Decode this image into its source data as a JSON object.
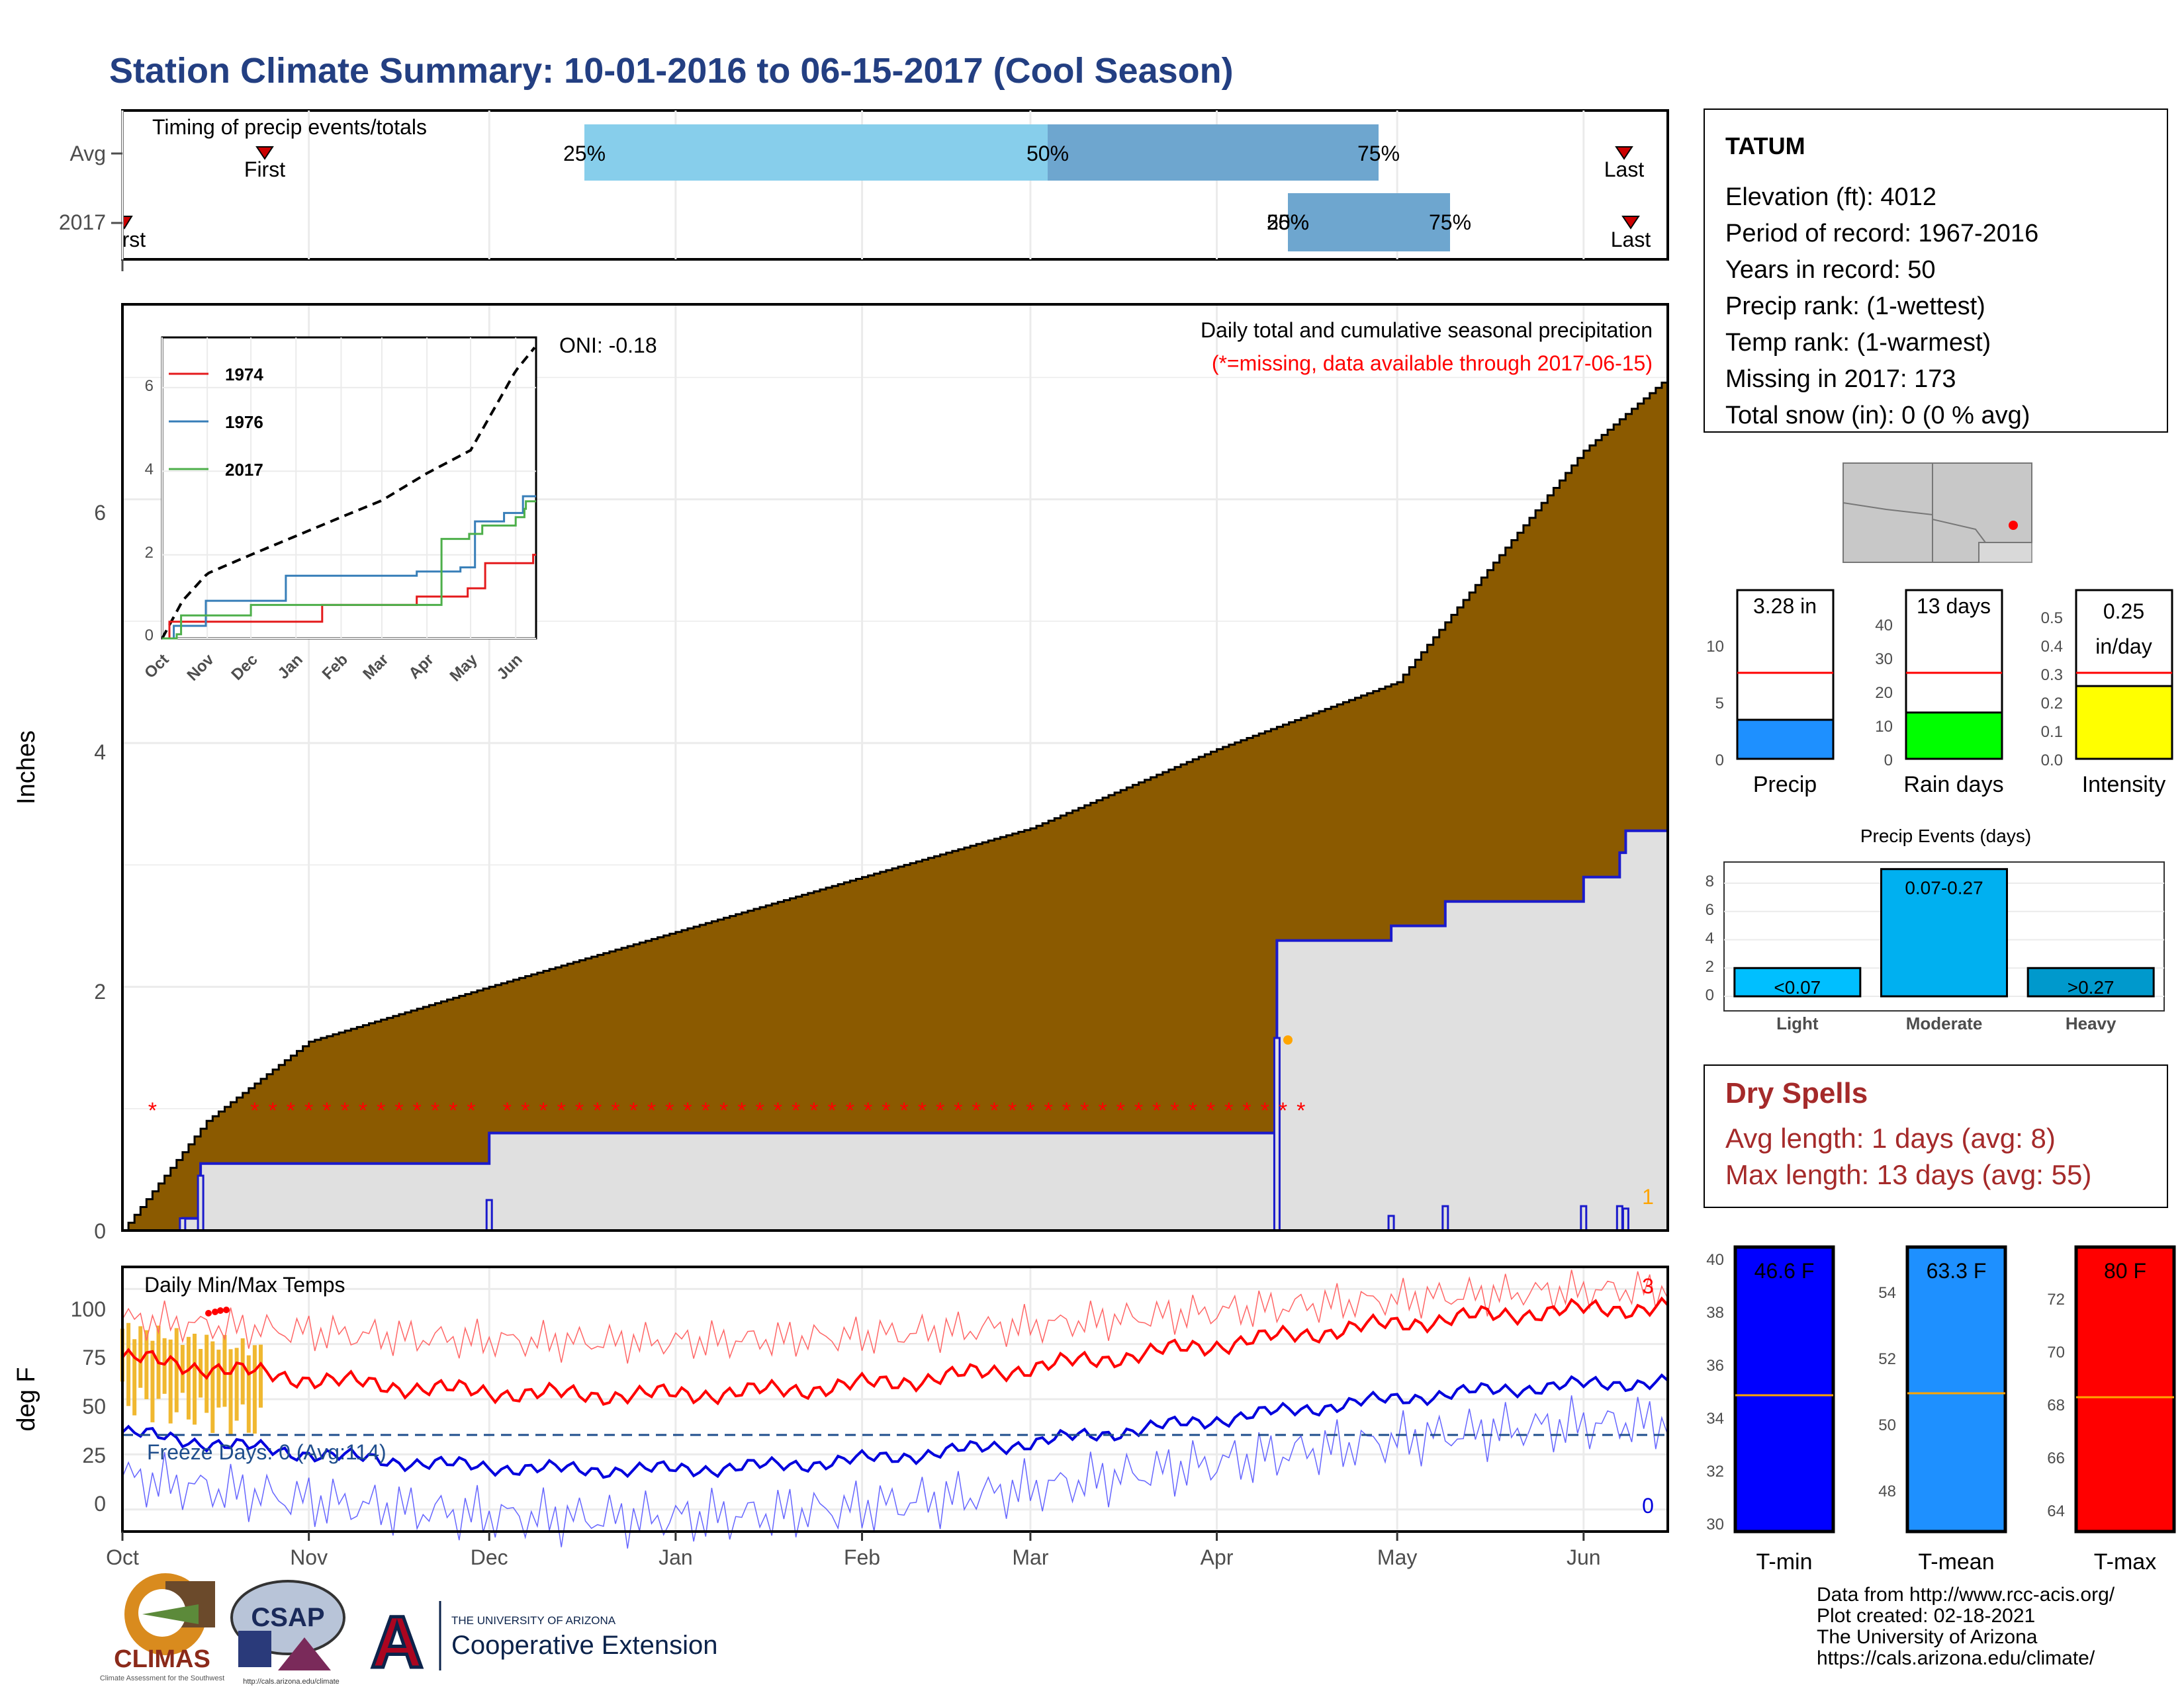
{
  "title": "Station Climate Summary: 10-01-2016 to 06-15-2017 (Cool Season)",
  "timing": {
    "label": "Timing of precip events/totals",
    "rows": [
      "Avg",
      "2017"
    ],
    "avg": {
      "first_label": "First",
      "last_label": "Last",
      "p25": "25%",
      "p50": "50%",
      "p75": "75%"
    },
    "y2017": {
      "first_label": "First",
      "last_label": "Last",
      "p25": "25%",
      "p50": "50%",
      "p75": "75%"
    },
    "colors": {
      "light": "#87ceeb",
      "dark": "#6ea6cf",
      "marker": "#cc0000"
    }
  },
  "precip_panel": {
    "ylabel": "Inches",
    "yticks": [
      "0",
      "2",
      "4",
      "6"
    ],
    "oni": "ONI: -0.18",
    "note1": "Daily total and cumulative seasonal precipitation",
    "note2": "(*=missing, data available through 2017-06-15)",
    "corner_count": "1",
    "colors": {
      "avg_fill": "#8b5a00",
      "obs_fill": "#e0e0e0",
      "obs_line": "#1a1acc",
      "missing": "#ff0000"
    }
  },
  "inset": {
    "yticks": [
      "0",
      "2",
      "4",
      "6"
    ],
    "xticks": [
      "Oct",
      "Nov",
      "Dec",
      "Jan",
      "Feb",
      "Mar",
      "Apr",
      "May",
      "Jun"
    ],
    "legend": [
      {
        "name": "1974",
        "color": "#e41a1c"
      },
      {
        "name": "1976",
        "color": "#377eb8"
      },
      {
        "name": "2017",
        "color": "#4daf4a"
      }
    ]
  },
  "temp_panel": {
    "ylabel": "deg F",
    "yticks": [
      "0",
      "25",
      "50",
      "75",
      "100"
    ],
    "label": "Daily Min/Max Temps",
    "freeze": "Freeze Days: 0 (Avg:114)",
    "count_max": "3",
    "count_min": "0",
    "xticks": [
      "Oct",
      "Nov",
      "Dec",
      "Jan",
      "Feb",
      "Mar",
      "Apr",
      "May",
      "Jun"
    ]
  },
  "station": {
    "name": "TATUM",
    "lines": [
      "Elevation (ft): 4012",
      "Period of record: 1967-2016",
      "Years in record: 50",
      "Precip rank:  (1-wettest)",
      "Temp rank:  (1-warmest)",
      "Missing in 2017: 173",
      "Total snow (in): 0 (0 % avg)"
    ]
  },
  "gauges": [
    {
      "label": "Precip",
      "value": "3.28 in",
      "ticks": [
        "0",
        "5",
        "10"
      ],
      "color": "#1e90ff"
    },
    {
      "label": "Rain days",
      "value": "13 days",
      "ticks": [
        "0",
        "10",
        "20",
        "30",
        "40"
      ],
      "color": "#00ff00"
    },
    {
      "label": "Intensity",
      "value1": "0.25",
      "value2": "in/day",
      "ticks": [
        "0.0",
        "0.1",
        "0.2",
        "0.3",
        "0.4",
        "0.5"
      ],
      "color": "#ffff00"
    }
  ],
  "events": {
    "title": "Precip Events (days)",
    "yticks": [
      "0",
      "2",
      "4",
      "6",
      "8"
    ],
    "bars": [
      {
        "category": "Light",
        "label": "<0.07",
        "value": 2,
        "color": "#00bfff"
      },
      {
        "category": "Moderate",
        "label": "0.07-0.27",
        "value": 9,
        "color": "#00b0f0"
      },
      {
        "category": "Heavy",
        "label": ">0.27",
        "value": 2,
        "color": "#0099cc"
      }
    ]
  },
  "dry_spells": {
    "title": "Dry Spells",
    "avg": "Avg length: 1 days (avg: 8)",
    "max": "Max length: 13 days (avg: 55)"
  },
  "temp_gauges": [
    {
      "label": "T-min",
      "value": "46.6 F",
      "ticks": [
        "30",
        "32",
        "34",
        "36",
        "38",
        "40"
      ],
      "color": "#0000ff"
    },
    {
      "label": "T-mean",
      "value": "63.3 F",
      "ticks": [
        "48",
        "50",
        "52",
        "54",
        "56"
      ],
      "color": "#1e90ff"
    },
    {
      "label": "T-max",
      "value": "80 F",
      "ticks": [
        "64",
        "66",
        "68",
        "70",
        "72"
      ],
      "color": "#ff0000"
    }
  ],
  "credits": [
    "Data from http://www.rcc-acis.org/",
    "Plot created: 02-18-2021",
    "The University of Arizona",
    "https://cals.arizona.edu/climate/"
  ],
  "logos": {
    "climas": "CLIMAS",
    "climas_sub": "Climate Assessment for the Southwest",
    "csap": "CSAP",
    "csap_url": "http://cals.arizona.edu/climate",
    "ua_letter": "A",
    "ua_line1": "THE UNIVERSITY OF ARIZONA",
    "ua_line2": "Cooperative Extension"
  },
  "chart_data": {
    "type": "area",
    "title": "Daily total and cumulative seasonal precipitation",
    "x_range": [
      "2016-10-01",
      "2017-06-15"
    ],
    "ylabel": "Inches",
    "ylim": [
      0,
      7.6
    ],
    "series": [
      {
        "name": "Average cumulative",
        "x": [
          "2016-10-01",
          "2016-10-15",
          "2016-11-01",
          "2016-12-01",
          "2017-01-01",
          "2017-02-01",
          "2017-03-01",
          "2017-04-01",
          "2017-05-01",
          "2017-06-01",
          "2017-06-15"
        ],
        "values": [
          0,
          0.9,
          1.55,
          2.0,
          2.45,
          2.9,
          3.3,
          3.95,
          4.5,
          6.4,
          7.0
        ]
      },
      {
        "name": "2017 cumulative",
        "x": [
          "2016-10-01",
          "2016-10-11",
          "2016-10-14",
          "2016-12-01",
          "2017-04-11",
          "2017-04-30",
          "2017-05-09",
          "2017-06-01",
          "2017-06-07",
          "2017-06-08"
        ],
        "values": [
          0,
          0.1,
          0.55,
          0.8,
          2.38,
          2.5,
          2.7,
          2.9,
          3.1,
          3.28
        ]
      }
    ],
    "temps": {
      "ylim": [
        -10,
        110
      ],
      "freeze_line": 32
    }
  }
}
